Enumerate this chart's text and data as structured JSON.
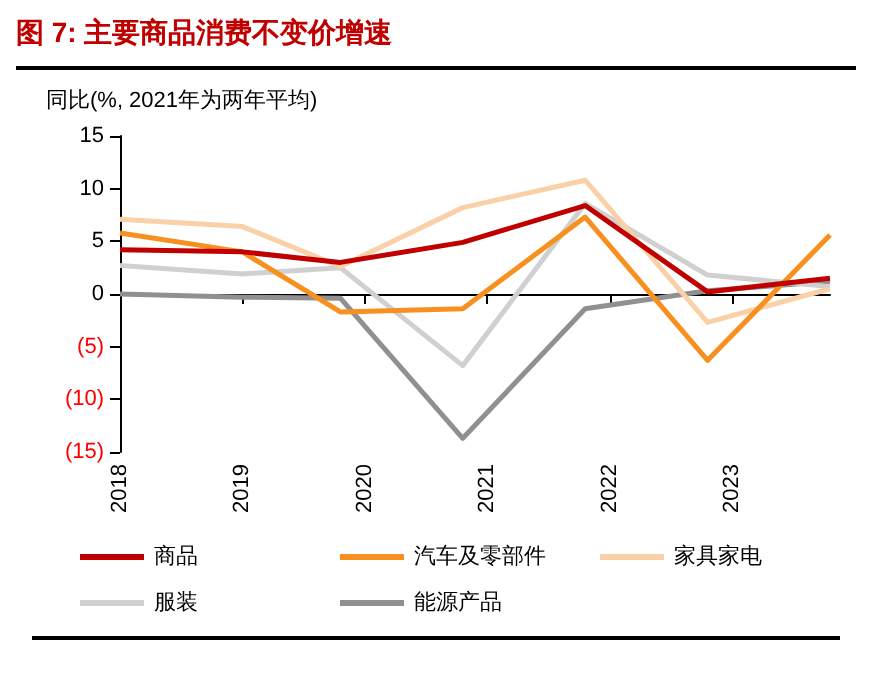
{
  "chart_data": {
    "type": "line",
    "title": "图 7: 主要商品消费不变价增速",
    "ylabel": "同比(%, 2021年为两年平均)",
    "x": [
      2018,
      2019,
      2019.8,
      2020.8,
      2021.8,
      2022.8,
      2023.8
    ],
    "xlim": [
      2018,
      2023.8
    ],
    "xticks": [
      2018,
      2019,
      2020,
      2021,
      2022,
      2023
    ],
    "ylim": [
      -15,
      15
    ],
    "yticks": [
      {
        "value": -15,
        "label": "(15)"
      },
      {
        "value": -10,
        "label": "(10)"
      },
      {
        "value": -5,
        "label": "(5)"
      },
      {
        "value": 0,
        "label": "0"
      },
      {
        "value": 5,
        "label": "5"
      },
      {
        "value": 10,
        "label": "10"
      },
      {
        "value": 15,
        "label": "15"
      }
    ],
    "series": [
      {
        "name": "商品",
        "color": "#c00000",
        "values": [
          4.2,
          4.0,
          3.0,
          4.9,
          8.4,
          0.2,
          1.5
        ]
      },
      {
        "name": "汽车及零部件",
        "color": "#f7901e",
        "values": [
          5.8,
          4.0,
          -1.7,
          -1.4,
          7.3,
          -6.3,
          5.6
        ]
      },
      {
        "name": "家具家电",
        "color": "#fad0a8",
        "values": [
          7.1,
          6.4,
          2.6,
          8.2,
          10.8,
          -2.7,
          0.5
        ]
      },
      {
        "name": "服装",
        "color": "#d0d0d0",
        "values": [
          2.7,
          1.9,
          2.5,
          -6.8,
          8.6,
          1.8,
          0.7
        ]
      },
      {
        "name": "能源产品",
        "color": "#909090",
        "values": [
          0,
          -0.3,
          -0.4,
          -13.7,
          -1.4,
          0.3,
          1.2
        ]
      }
    ],
    "legend": "bottom",
    "marker": "none",
    "line_style": "solid"
  }
}
